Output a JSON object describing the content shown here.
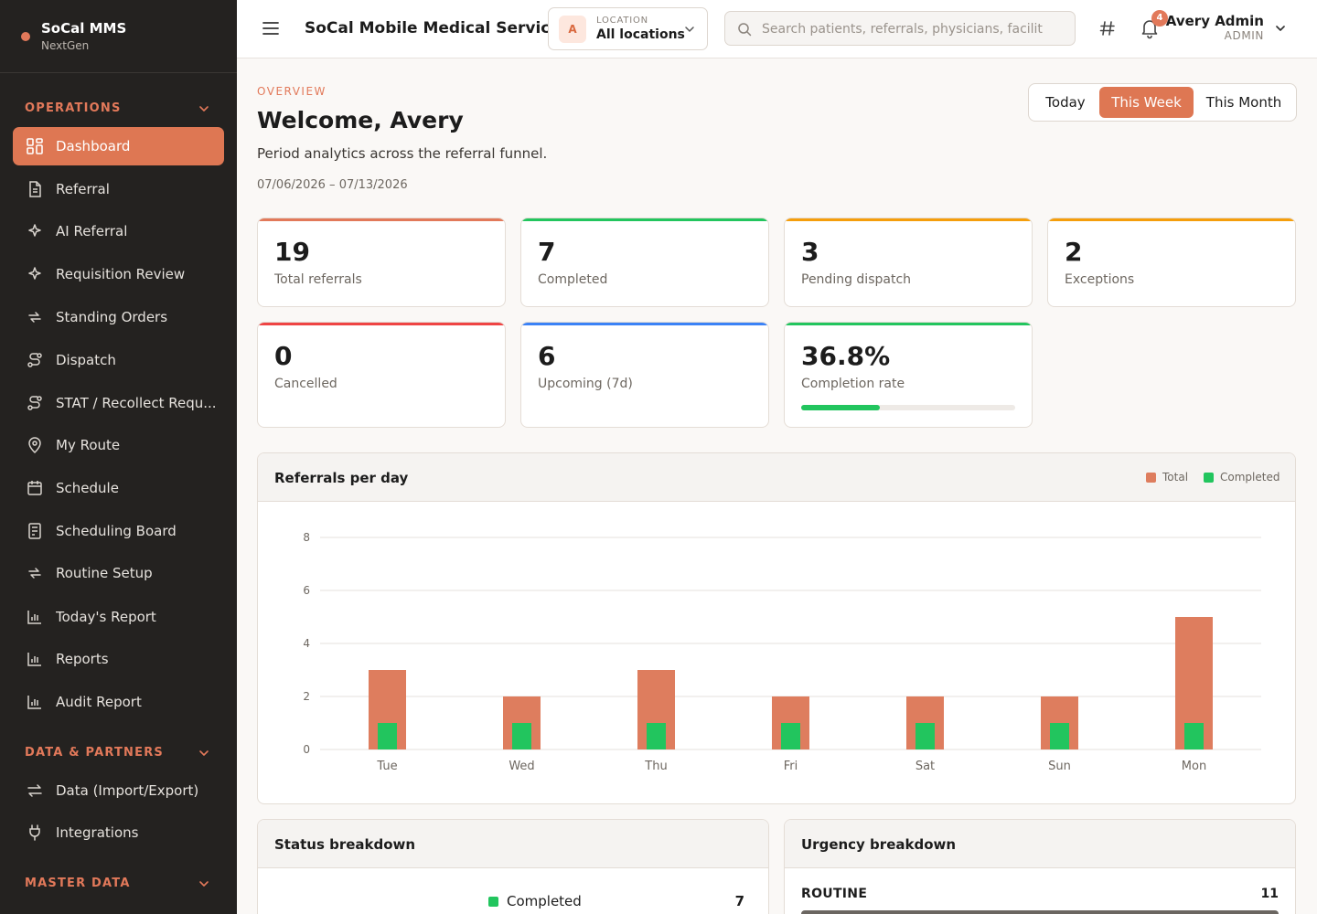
{
  "brand": {
    "name": "SoCal MMS",
    "sub": "NextGen"
  },
  "sidebar": {
    "sections": [
      {
        "title": "OPERATIONS"
      },
      {
        "title": "DATA & PARTNERS"
      },
      {
        "title": "MASTER DATA"
      }
    ],
    "items": [
      {
        "label": "Dashboard",
        "icon": "grid-icon",
        "active": true
      },
      {
        "label": "Referral",
        "icon": "file-icon"
      },
      {
        "label": "AI Referral",
        "icon": "sparkle-icon"
      },
      {
        "label": "Requisition Review",
        "icon": "sparkle-icon"
      },
      {
        "label": "Standing Orders",
        "icon": "repeat-icon"
      },
      {
        "label": "Dispatch",
        "icon": "route-icon"
      },
      {
        "label": "STAT / Recollect Requ...",
        "icon": "route-icon"
      },
      {
        "label": "My Route",
        "icon": "map-pin-icon"
      },
      {
        "label": "Schedule",
        "icon": "calendar-icon"
      },
      {
        "label": "Scheduling Board",
        "icon": "board-icon"
      },
      {
        "label": "Routine Setup",
        "icon": "repeat-icon"
      },
      {
        "label": "Today's Report",
        "icon": "bar-chart-icon"
      },
      {
        "label": "Reports",
        "icon": "bar-chart-icon"
      },
      {
        "label": "Audit Report",
        "icon": "bar-chart-icon"
      },
      {
        "label": "Data (Import/Export)",
        "icon": "arrows-icon"
      },
      {
        "label": "Integrations",
        "icon": "plug-icon"
      }
    ]
  },
  "header": {
    "title": "SoCal Mobile Medical Services",
    "location": {
      "avatar": "A",
      "label": "LOCATION",
      "value": "All locations"
    },
    "search_placeholder": "Search patients, referrals, physicians, facilities",
    "notifications": "4",
    "user": {
      "name": "Avery Admin",
      "role": "ADMIN"
    }
  },
  "overview": {
    "eyebrow": "OVERVIEW",
    "welcome": "Welcome, Avery",
    "subtitle": "Period analytics across the referral funnel.",
    "date_range": "07/06/2026 – 07/13/2026"
  },
  "period_tabs": [
    {
      "label": "Today"
    },
    {
      "label": "This Week",
      "selected": true
    },
    {
      "label": "This Month"
    }
  ],
  "kpis": [
    {
      "value": "19",
      "label": "Total referrals",
      "color": "#e2795a"
    },
    {
      "value": "7",
      "label": "Completed",
      "color": "#22c55e"
    },
    {
      "value": "3",
      "label": "Pending dispatch",
      "color": "#f59e0b"
    },
    {
      "value": "2",
      "label": "Exceptions",
      "color": "#f59e0b"
    },
    {
      "value": "0",
      "label": "Cancelled",
      "color": "#ef4444"
    },
    {
      "value": "6",
      "label": "Upcoming (7d)",
      "color": "#3b82f6"
    },
    {
      "value": "36.8%",
      "label": "Completion rate",
      "color": "#22c55e",
      "progress": 0.368
    }
  ],
  "chart_panel": {
    "title": "Referrals per day"
  },
  "chart_data": {
    "type": "bar",
    "categories": [
      "Tue",
      "Wed",
      "Thu",
      "Fri",
      "Sat",
      "Sun",
      "Mon"
    ],
    "series": [
      {
        "name": "Total",
        "values": [
          3,
          2,
          3,
          2,
          2,
          2,
          5
        ],
        "color": "#de7d5e"
      },
      {
        "name": "Completed",
        "values": [
          1,
          1,
          1,
          1,
          1,
          1,
          1
        ],
        "color": "#22c55e"
      }
    ],
    "ylim": [
      0,
      8
    ],
    "yticks": [
      0,
      2,
      4,
      6,
      8
    ],
    "grid": true,
    "legend": "top-right"
  },
  "status_panel": {
    "title": "Status breakdown",
    "rows": [
      {
        "label": "Completed",
        "value": "7",
        "color": "#22c55e"
      }
    ]
  },
  "urgency_panel": {
    "title": "Urgency breakdown",
    "rows": [
      {
        "label": "ROUTINE",
        "value": "11"
      }
    ]
  }
}
